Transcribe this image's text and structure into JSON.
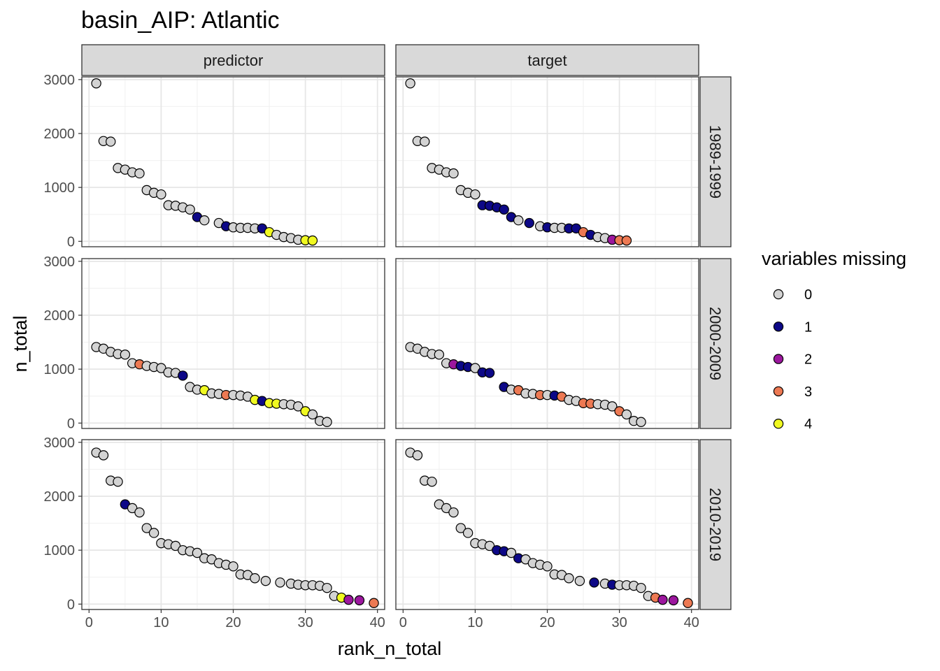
{
  "chart_data": {
    "type": "scatter",
    "title": "basin_AIP: Atlantic",
    "xlabel": "rank_n_total",
    "ylabel": "n_total",
    "xlim": [
      -1,
      41
    ],
    "ylim": [
      -100,
      3050
    ],
    "x_ticks": [
      0,
      10,
      20,
      30,
      40
    ],
    "y_ticks": [
      0,
      1000,
      2000,
      3000
    ],
    "columns": [
      "predictor",
      "target"
    ],
    "rows": [
      "1989-1999",
      "2000-2009",
      "2010-2019"
    ],
    "legend": {
      "title": "variables missing",
      "entries": [
        {
          "label": "0",
          "color": "#d3d3d3"
        },
        {
          "label": "1",
          "color": "#0d0887"
        },
        {
          "label": "2",
          "color": "#9c179e"
        },
        {
          "label": "3",
          "color": "#ed7953"
        },
        {
          "label": "4",
          "color": "#f0f921"
        }
      ]
    },
    "panels": [
      {
        "column": "predictor",
        "row": "1989-1999",
        "points": [
          [
            1,
            2930,
            0
          ],
          [
            2,
            1860,
            0
          ],
          [
            3,
            1850,
            0
          ],
          [
            4,
            1360,
            0
          ],
          [
            5,
            1330,
            0
          ],
          [
            6,
            1280,
            0
          ],
          [
            7,
            1260,
            0
          ],
          [
            8,
            950,
            0
          ],
          [
            9,
            900,
            0
          ],
          [
            10,
            870,
            0
          ],
          [
            11,
            670,
            0
          ],
          [
            12,
            660,
            0
          ],
          [
            13,
            630,
            0
          ],
          [
            14,
            590,
            0
          ],
          [
            15,
            450,
            1
          ],
          [
            16,
            390,
            0
          ],
          [
            18,
            340,
            0
          ],
          [
            19,
            280,
            1
          ],
          [
            20,
            260,
            0
          ],
          [
            21,
            250,
            0
          ],
          [
            22,
            250,
            0
          ],
          [
            23,
            240,
            0
          ],
          [
            24,
            240,
            1
          ],
          [
            25,
            170,
            4
          ],
          [
            26,
            120,
            0
          ],
          [
            27,
            80,
            0
          ],
          [
            28,
            60,
            0
          ],
          [
            29,
            30,
            0
          ],
          [
            30,
            20,
            4
          ],
          [
            31,
            15,
            4
          ]
        ]
      },
      {
        "column": "target",
        "row": "1989-1999",
        "points": [
          [
            1,
            2930,
            0
          ],
          [
            2,
            1860,
            0
          ],
          [
            3,
            1850,
            0
          ],
          [
            4,
            1360,
            0
          ],
          [
            5,
            1330,
            0
          ],
          [
            6,
            1280,
            0
          ],
          [
            7,
            1260,
            0
          ],
          [
            8,
            950,
            0
          ],
          [
            9,
            900,
            0
          ],
          [
            10,
            870,
            0
          ],
          [
            11,
            670,
            1
          ],
          [
            12,
            660,
            1
          ],
          [
            13,
            630,
            1
          ],
          [
            14,
            590,
            1
          ],
          [
            15,
            450,
            1
          ],
          [
            16,
            390,
            0
          ],
          [
            17.5,
            340,
            1
          ],
          [
            19,
            280,
            0
          ],
          [
            20,
            260,
            1
          ],
          [
            21,
            250,
            0
          ],
          [
            22,
            250,
            0
          ],
          [
            23,
            240,
            1
          ],
          [
            24,
            240,
            1
          ],
          [
            25,
            170,
            3
          ],
          [
            26,
            120,
            1
          ],
          [
            27,
            80,
            0
          ],
          [
            28,
            60,
            0
          ],
          [
            29,
            30,
            2
          ],
          [
            30,
            20,
            3
          ],
          [
            31,
            15,
            3
          ]
        ]
      },
      {
        "column": "predictor",
        "row": "2000-2009",
        "points": [
          [
            1,
            1410,
            0
          ],
          [
            2,
            1380,
            0
          ],
          [
            3,
            1320,
            0
          ],
          [
            4,
            1280,
            0
          ],
          [
            5,
            1270,
            0
          ],
          [
            6,
            1110,
            0
          ],
          [
            7,
            1090,
            3
          ],
          [
            8,
            1060,
            0
          ],
          [
            9,
            1040,
            0
          ],
          [
            10,
            1020,
            0
          ],
          [
            11,
            940,
            0
          ],
          [
            12,
            930,
            0
          ],
          [
            13,
            880,
            1
          ],
          [
            14,
            670,
            0
          ],
          [
            15,
            620,
            0
          ],
          [
            16,
            610,
            4
          ],
          [
            17,
            550,
            0
          ],
          [
            18,
            540,
            0
          ],
          [
            19,
            520,
            3
          ],
          [
            20,
            520,
            0
          ],
          [
            21,
            510,
            0
          ],
          [
            22,
            490,
            0
          ],
          [
            23,
            430,
            4
          ],
          [
            24,
            410,
            1
          ],
          [
            25,
            370,
            4
          ],
          [
            26,
            360,
            4
          ],
          [
            27,
            350,
            0
          ],
          [
            28,
            340,
            0
          ],
          [
            29,
            310,
            0
          ],
          [
            30,
            220,
            4
          ],
          [
            31,
            160,
            0
          ],
          [
            32,
            40,
            0
          ],
          [
            33,
            20,
            0
          ]
        ]
      },
      {
        "column": "target",
        "row": "2000-2009",
        "points": [
          [
            1,
            1410,
            0
          ],
          [
            2,
            1380,
            0
          ],
          [
            3,
            1320,
            0
          ],
          [
            4,
            1280,
            0
          ],
          [
            5,
            1270,
            0
          ],
          [
            6,
            1110,
            0
          ],
          [
            7,
            1090,
            2
          ],
          [
            8,
            1060,
            1
          ],
          [
            9,
            1040,
            1
          ],
          [
            10,
            1020,
            0
          ],
          [
            11,
            940,
            1
          ],
          [
            12,
            930,
            1
          ],
          [
            14,
            670,
            1
          ],
          [
            15,
            620,
            0
          ],
          [
            16,
            610,
            3
          ],
          [
            17,
            550,
            0
          ],
          [
            18,
            540,
            0
          ],
          [
            19,
            520,
            3
          ],
          [
            20,
            520,
            0
          ],
          [
            21,
            510,
            1
          ],
          [
            22,
            490,
            3
          ],
          [
            23,
            430,
            0
          ],
          [
            24,
            410,
            0
          ],
          [
            25,
            370,
            3
          ],
          [
            26,
            360,
            3
          ],
          [
            27,
            350,
            0
          ],
          [
            28,
            340,
            0
          ],
          [
            29,
            310,
            0
          ],
          [
            30,
            220,
            3
          ],
          [
            31,
            160,
            0
          ],
          [
            32,
            40,
            0
          ],
          [
            33,
            20,
            0
          ]
        ]
      },
      {
        "column": "predictor",
        "row": "2010-2019",
        "points": [
          [
            1,
            2810,
            0
          ],
          [
            2,
            2760,
            0
          ],
          [
            3,
            2290,
            0
          ],
          [
            4,
            2270,
            0
          ],
          [
            5,
            1850,
            1
          ],
          [
            6,
            1780,
            0
          ],
          [
            7,
            1700,
            0
          ],
          [
            8,
            1410,
            0
          ],
          [
            9,
            1320,
            0
          ],
          [
            10,
            1130,
            0
          ],
          [
            11,
            1110,
            0
          ],
          [
            12,
            1080,
            0
          ],
          [
            13,
            1000,
            0
          ],
          [
            14,
            980,
            0
          ],
          [
            15,
            950,
            0
          ],
          [
            16,
            850,
            0
          ],
          [
            17,
            830,
            0
          ],
          [
            18,
            760,
            0
          ],
          [
            19,
            730,
            0
          ],
          [
            20,
            700,
            0
          ],
          [
            21,
            550,
            0
          ],
          [
            22,
            540,
            0
          ],
          [
            23,
            480,
            0
          ],
          [
            24.5,
            430,
            0
          ],
          [
            26.5,
            400,
            0
          ],
          [
            28,
            380,
            0
          ],
          [
            29,
            360,
            0
          ],
          [
            30,
            350,
            0
          ],
          [
            31,
            350,
            0
          ],
          [
            32,
            340,
            0
          ],
          [
            33,
            300,
            0
          ],
          [
            34,
            150,
            0
          ],
          [
            35,
            120,
            4
          ],
          [
            36,
            80,
            2
          ],
          [
            37.5,
            70,
            2
          ],
          [
            39.5,
            20,
            3
          ]
        ]
      },
      {
        "column": "target",
        "row": "2010-2019",
        "points": [
          [
            1,
            2810,
            0
          ],
          [
            2,
            2760,
            0
          ],
          [
            3,
            2290,
            0
          ],
          [
            4,
            2270,
            0
          ],
          [
            5,
            1850,
            0
          ],
          [
            6,
            1780,
            0
          ],
          [
            7,
            1700,
            0
          ],
          [
            8,
            1410,
            0
          ],
          [
            9,
            1320,
            0
          ],
          [
            10,
            1130,
            0
          ],
          [
            11,
            1110,
            0
          ],
          [
            12,
            1080,
            0
          ],
          [
            13,
            1000,
            1
          ],
          [
            14,
            980,
            1
          ],
          [
            15,
            950,
            0
          ],
          [
            16,
            850,
            1
          ],
          [
            17,
            830,
            0
          ],
          [
            18,
            760,
            0
          ],
          [
            19,
            730,
            0
          ],
          [
            20,
            700,
            0
          ],
          [
            21,
            550,
            0
          ],
          [
            22,
            540,
            0
          ],
          [
            23,
            480,
            0
          ],
          [
            24.5,
            430,
            0
          ],
          [
            26.5,
            400,
            1
          ],
          [
            28,
            380,
            0
          ],
          [
            29,
            360,
            1
          ],
          [
            30,
            350,
            0
          ],
          [
            31,
            350,
            0
          ],
          [
            32,
            340,
            0
          ],
          [
            33,
            300,
            0
          ],
          [
            34,
            150,
            0
          ],
          [
            35,
            120,
            3
          ],
          [
            36,
            80,
            2
          ],
          [
            37.5,
            70,
            2
          ],
          [
            39.5,
            20,
            3
          ]
        ]
      }
    ]
  }
}
